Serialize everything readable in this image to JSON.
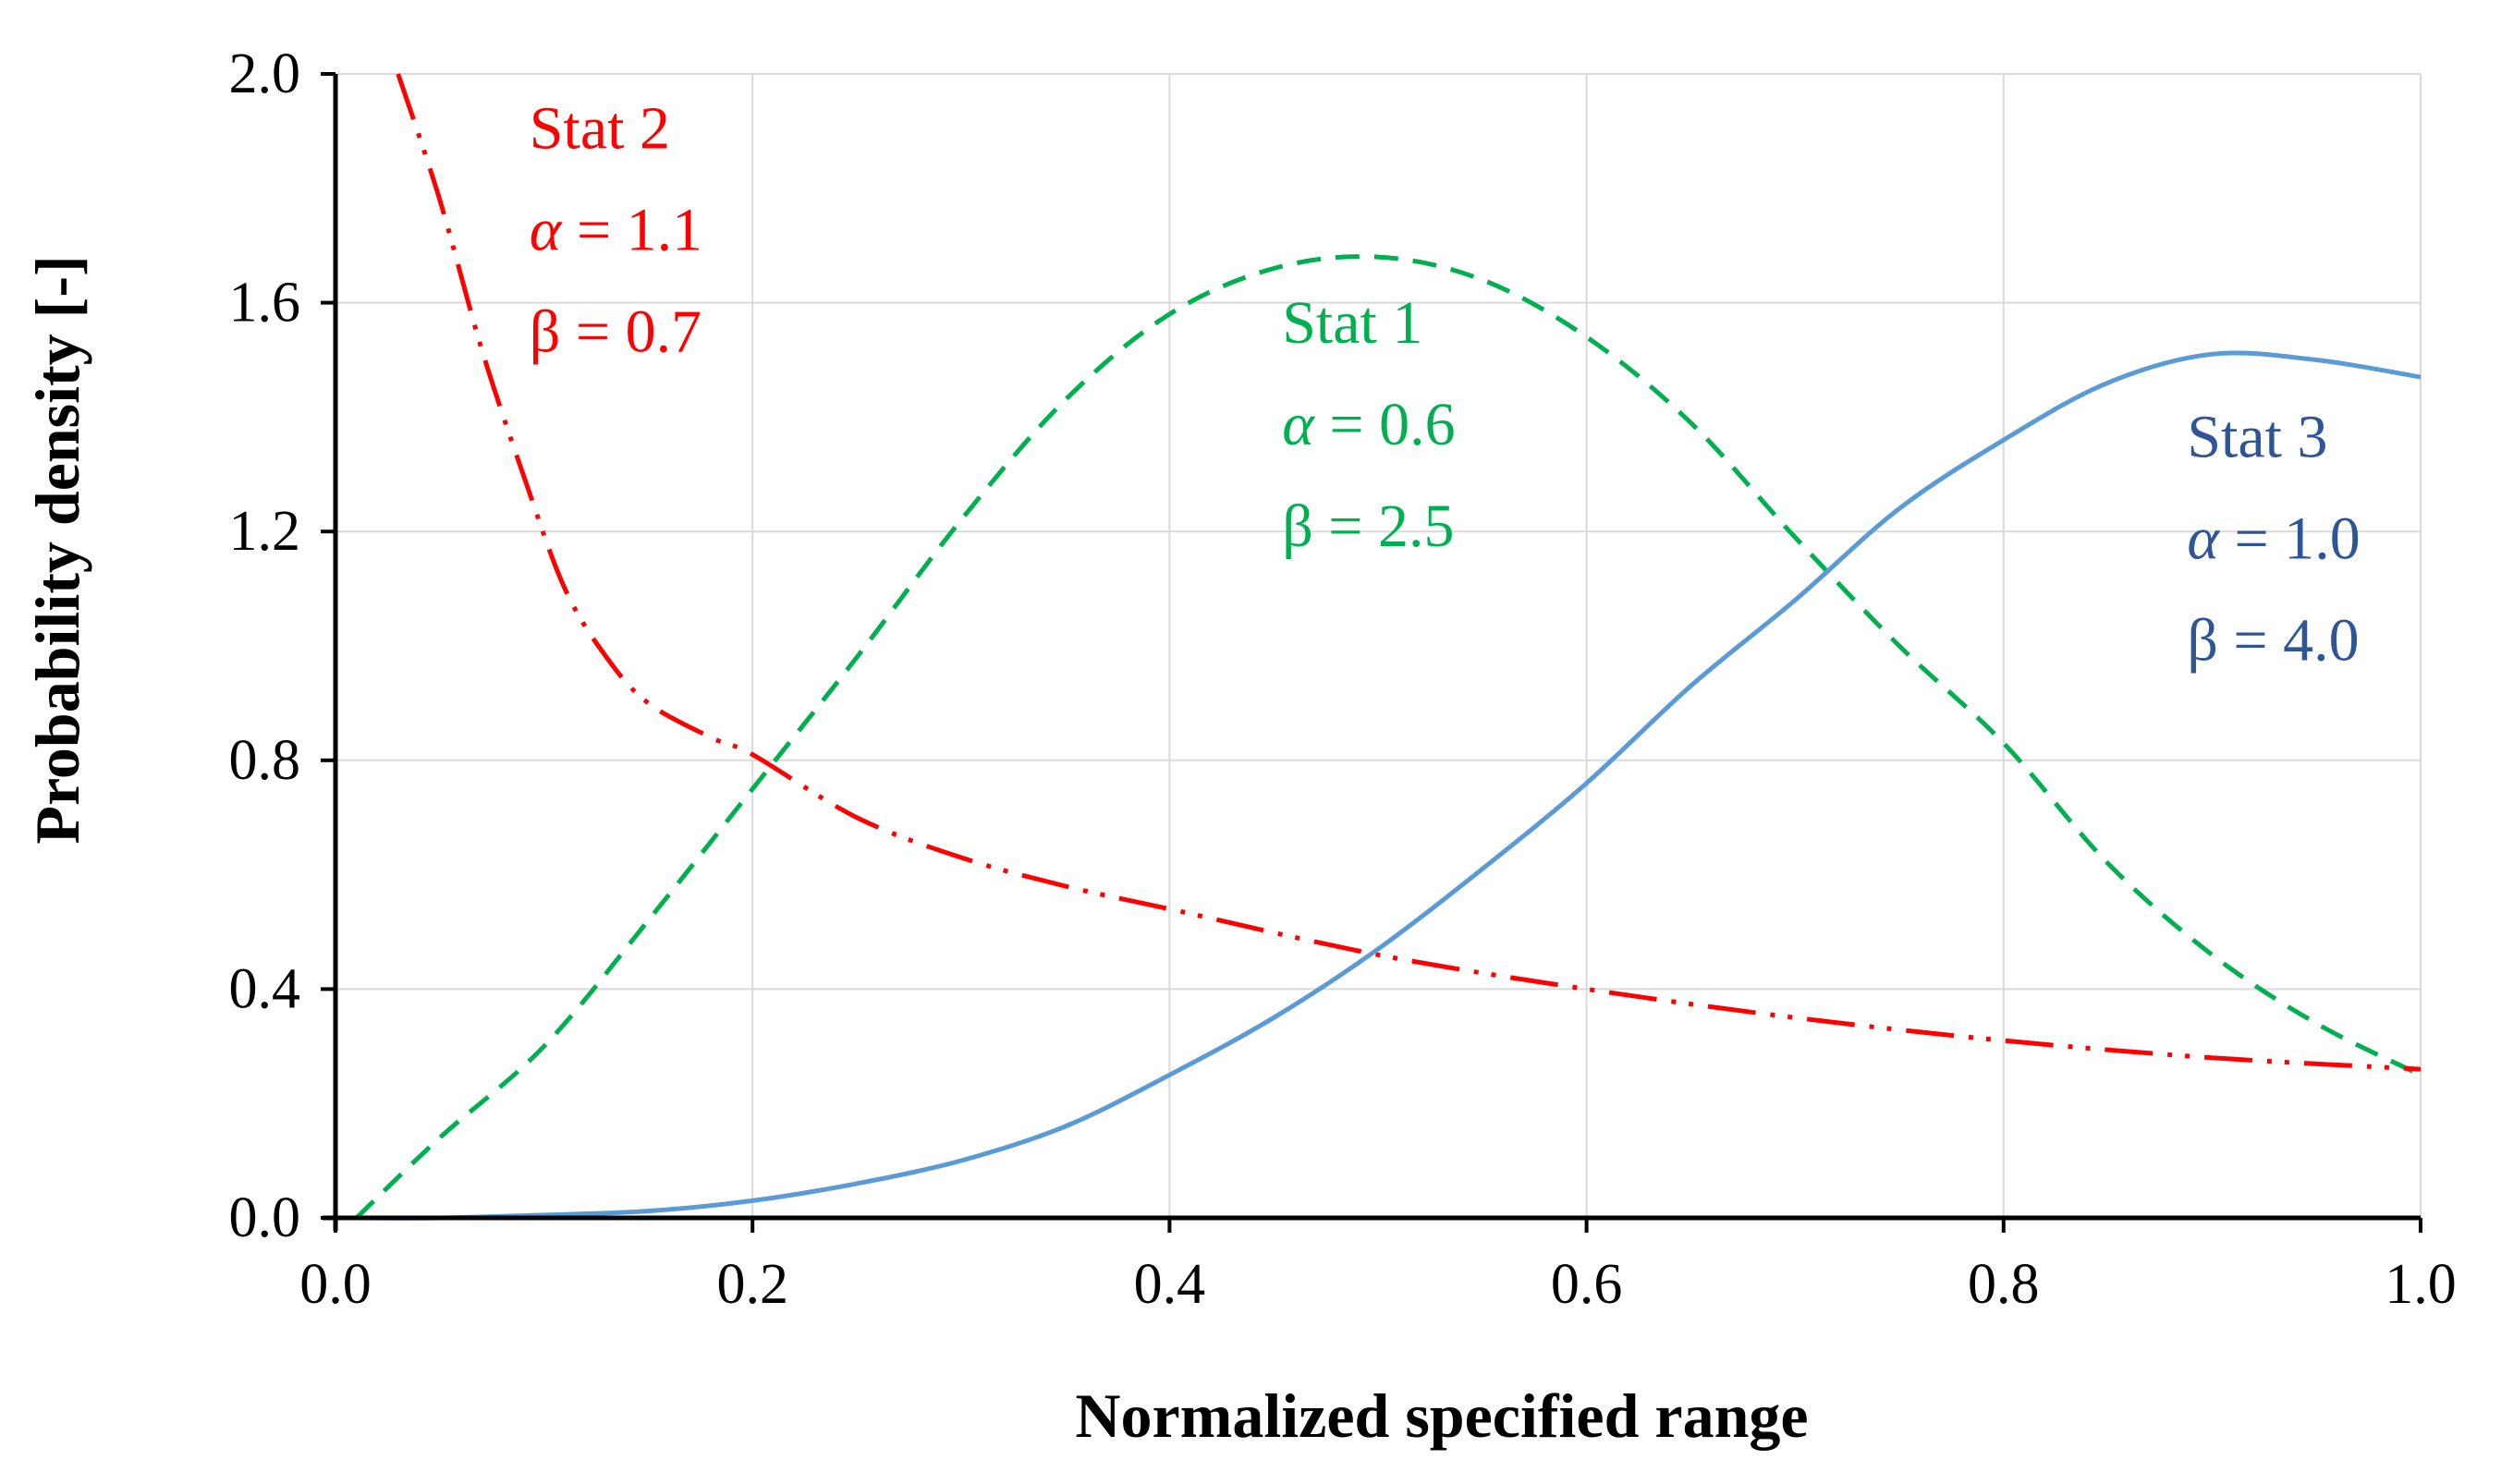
{
  "chart_data": {
    "type": "line",
    "title": "",
    "xlabel": "Normalized specified range",
    "ylabel": "Probability density [-]",
    "xlim": [
      0.0,
      1.0
    ],
    "ylim": [
      0.0,
      2.0
    ],
    "xticks": [
      "0.0",
      "0.2",
      "0.4",
      "0.6",
      "0.8",
      "1.0"
    ],
    "yticks": [
      "0.0",
      "0.4",
      "0.8",
      "1.2",
      "1.6",
      "2.0"
    ],
    "grid": true,
    "legend": "none",
    "series": [
      {
        "name": "Stat 1",
        "params": [
          "α = 0.6",
          "β = 2.5"
        ],
        "color": "#00b050",
        "style": "dashed",
        "x": [
          0.01,
          0.05,
          0.1,
          0.15,
          0.2,
          0.25,
          0.3,
          0.35,
          0.4,
          0.45,
          0.5,
          0.55,
          0.6,
          0.65,
          0.7,
          0.75,
          0.8,
          0.85,
          0.9,
          0.95,
          1.0
        ],
        "y": [
          0.0,
          0.14,
          0.3,
          0.52,
          0.75,
          0.98,
          1.22,
          1.43,
          1.58,
          1.66,
          1.68,
          1.64,
          1.54,
          1.39,
          1.19,
          1.0,
          0.83,
          0.62,
          0.46,
          0.34,
          0.25
        ]
      },
      {
        "name": "Stat 2",
        "params": [
          "α = 1.1",
          "β = 0.7"
        ],
        "color": "#ff0000",
        "style": "dash-dot-dot",
        "x": [
          0.03,
          0.05,
          0.07,
          0.09,
          0.11,
          0.13,
          0.15,
          0.18,
          0.2,
          0.25,
          0.3,
          0.35,
          0.4,
          0.5,
          0.6,
          0.7,
          0.8,
          0.9,
          1.0
        ],
        "y": [
          2.0,
          1.78,
          1.52,
          1.3,
          1.1,
          0.98,
          0.9,
          0.84,
          0.81,
          0.7,
          0.63,
          0.58,
          0.54,
          0.46,
          0.4,
          0.35,
          0.31,
          0.28,
          0.26
        ]
      },
      {
        "name": "Stat 3",
        "params": [
          "α = 1.0",
          "β = 4.0"
        ],
        "color": "#5b9bd5",
        "style": "solid",
        "x": [
          0.01,
          0.05,
          0.1,
          0.15,
          0.2,
          0.25,
          0.3,
          0.35,
          0.4,
          0.45,
          0.5,
          0.55,
          0.6,
          0.65,
          0.7,
          0.75,
          0.8,
          0.85,
          0.9,
          0.95,
          1.0
        ],
        "y": [
          0.0,
          0.0,
          0.005,
          0.012,
          0.03,
          0.06,
          0.1,
          0.16,
          0.25,
          0.35,
          0.47,
          0.61,
          0.76,
          0.93,
          1.08,
          1.24,
          1.36,
          1.46,
          1.51,
          1.5,
          1.47
        ]
      }
    ],
    "annotations": [
      {
        "series": "Stat 2",
        "lines": [
          "Stat 2",
          "α = 1.1",
          "β = 0.7"
        ],
        "color": "#ff0000",
        "anchor": [
          0.093,
          1.87
        ]
      },
      {
        "series": "Stat 1",
        "lines": [
          "Stat 1",
          "α = 0.6",
          "β = 2.5"
        ],
        "color": "#00b050",
        "anchor": [
          0.454,
          1.53
        ]
      },
      {
        "series": "Stat 3",
        "lines": [
          "Stat 3",
          "α = 1.0",
          "β = 4.0"
        ],
        "color": "#2f5597",
        "anchor": [
          0.888,
          1.33
        ]
      }
    ]
  }
}
